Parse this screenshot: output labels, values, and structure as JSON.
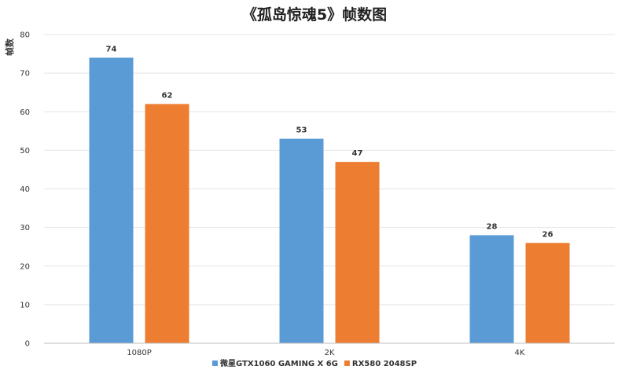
{
  "chart_data": {
    "type": "bar",
    "title": "《孤岛惊魂5》帧数图",
    "xlabel": "",
    "ylabel": "帧数",
    "ylim": [
      0,
      80
    ],
    "yticks": [
      0,
      10,
      20,
      30,
      40,
      50,
      60,
      70,
      80
    ],
    "categories": [
      "1080P",
      "2K",
      "4K"
    ],
    "series": [
      {
        "name": "微星GTX1060 GAMING X 6G",
        "values": [
          74,
          53,
          28
        ],
        "color": "#5b9bd5"
      },
      {
        "name": "RX580 2048SP",
        "values": [
          62,
          47,
          26
        ],
        "color": "#ed7d31"
      }
    ],
    "grid": true,
    "data_labels": true,
    "legend_position": "bottom"
  }
}
